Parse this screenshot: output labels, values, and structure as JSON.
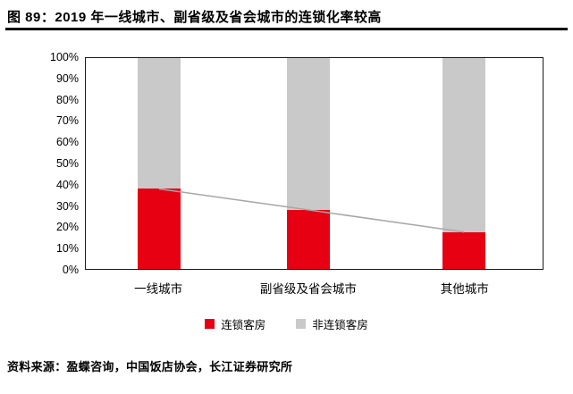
{
  "figure": {
    "title": "图 89：2019 年一线城市、副省级及省会城市的连锁化率较高",
    "source": "资料来源：盈蝶咨询，中国饭店协会，长江证券研究所"
  },
  "chart_data": {
    "type": "bar",
    "stacked": true,
    "title": "2019 年一线城市、副省级及省会城市的连锁化率较高",
    "categories": [
      "一线城市",
      "副省级及省会城市",
      "其他城市"
    ],
    "series": [
      {
        "name": "连锁客房",
        "color": "#e60012",
        "values": [
          38,
          28,
          17.5
        ]
      },
      {
        "name": "非连锁客房",
        "color": "#c9c9c9",
        "values": [
          62,
          72,
          82.5
        ]
      }
    ],
    "trend_line": {
      "series": "连锁客房",
      "values": [
        38,
        28,
        17.5
      ],
      "color": "#a6a6a6"
    },
    "xlabel": "",
    "ylabel": "",
    "ylim": [
      0,
      100
    ],
    "yticks": [
      "100%",
      "90%",
      "80%",
      "70%",
      "60%",
      "50%",
      "40%",
      "30%",
      "20%",
      "10%",
      "0%"
    ],
    "grid": false,
    "legend_position": "bottom"
  }
}
